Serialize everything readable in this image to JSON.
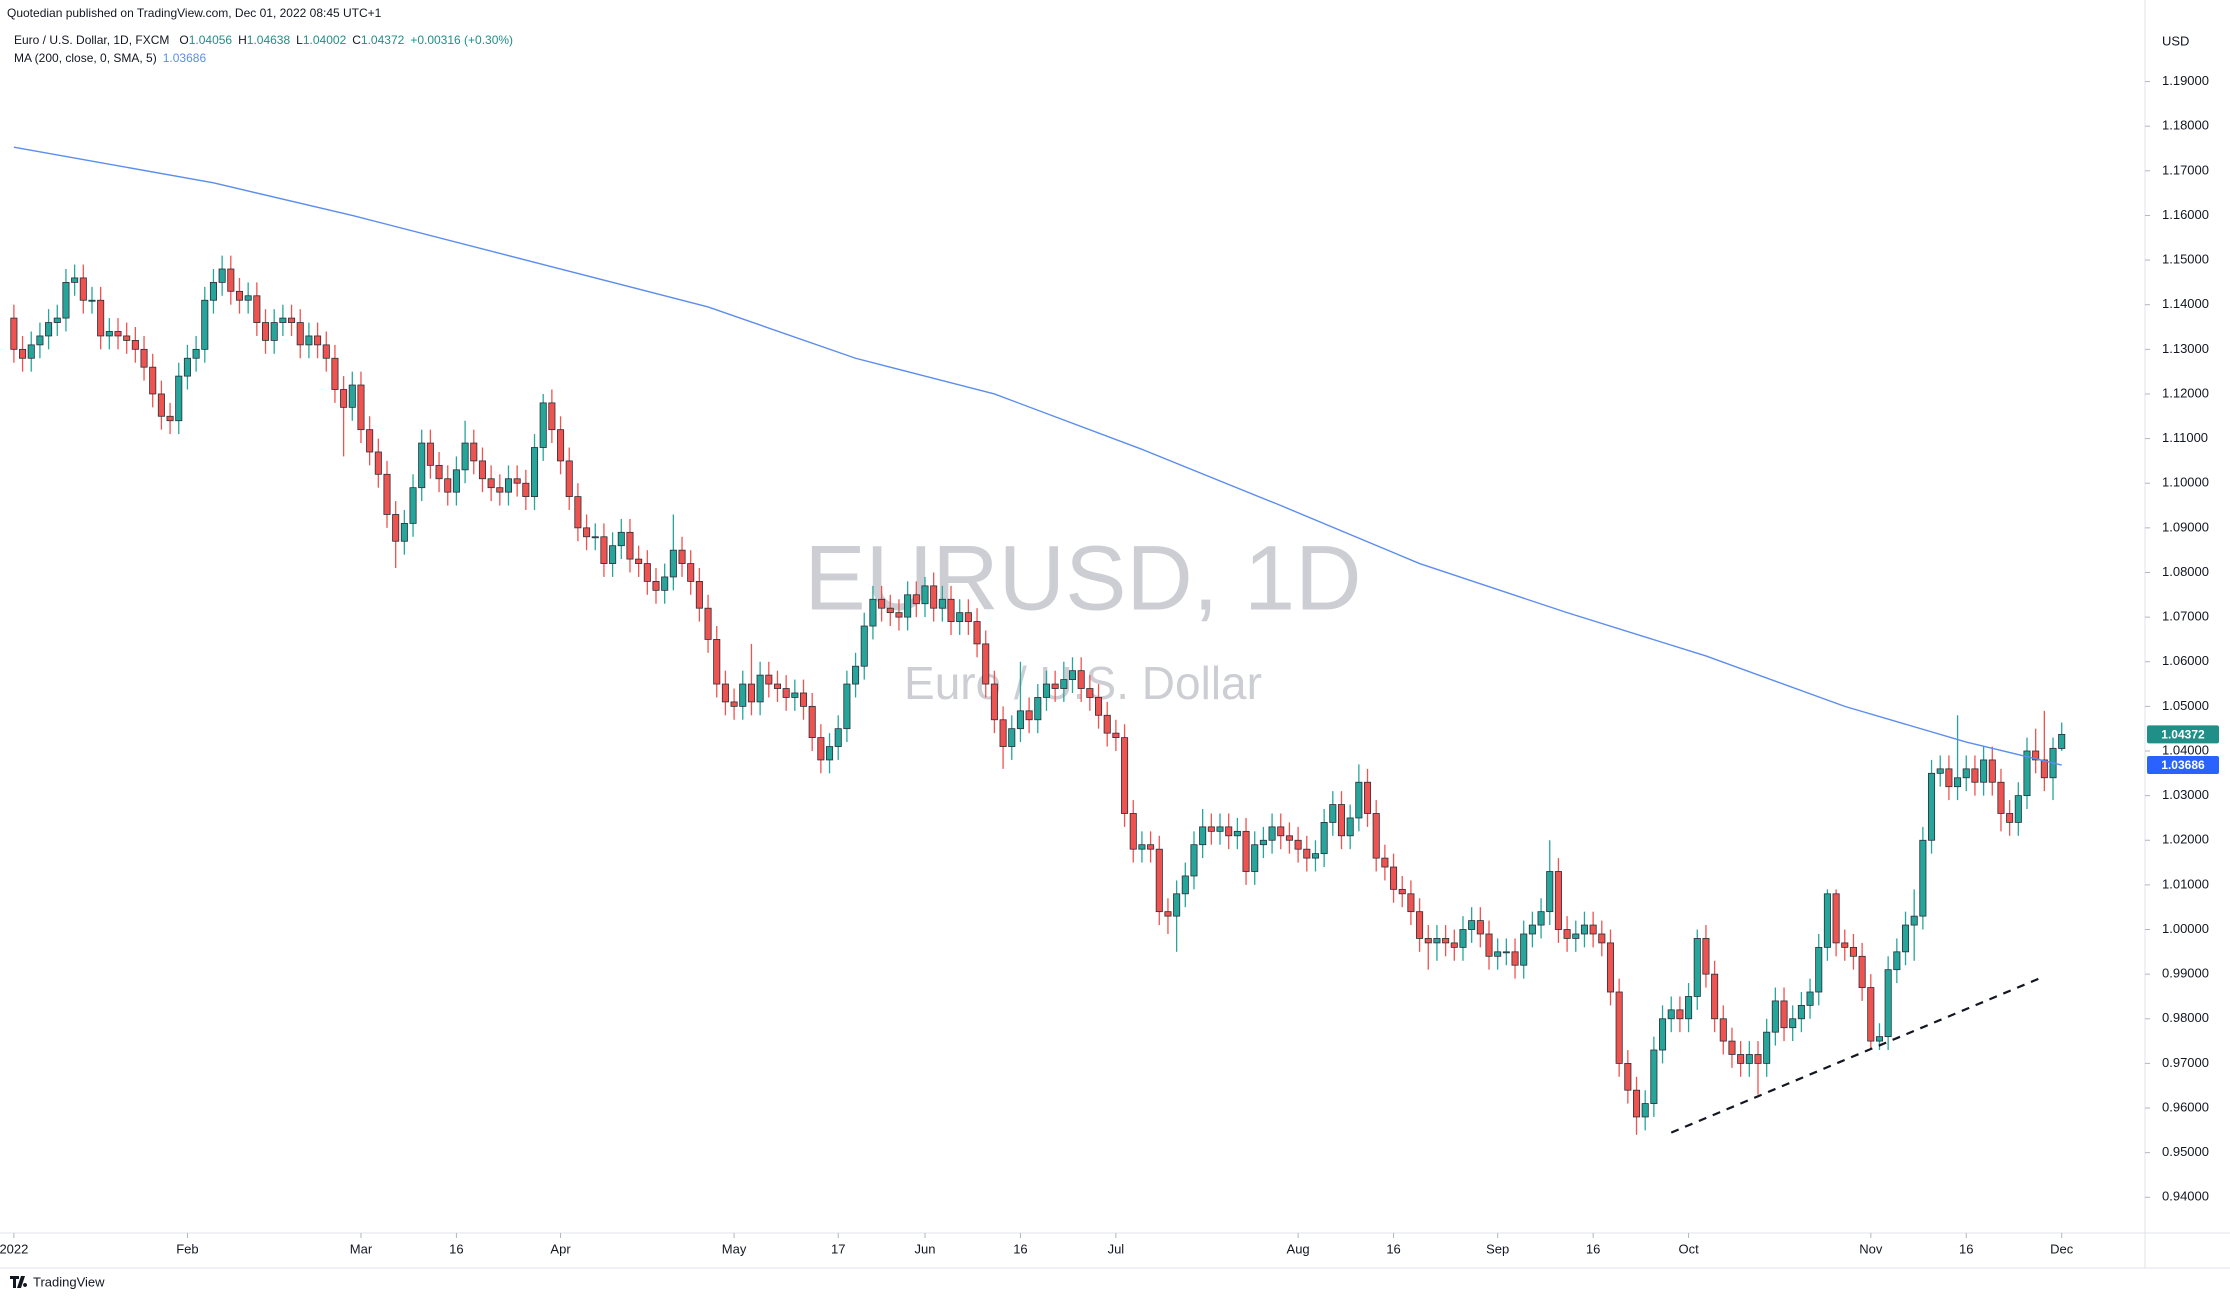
{
  "chart_data": {
    "type": "candlestick",
    "header": "Quotedian published on TradingView.com, Dec 01, 2022 08:45 UTC+1",
    "symbol": "Euro / U.S. Dollar, 1D, FXCM",
    "ohlc_prefixes": [
      "O",
      "H",
      "L",
      "C"
    ],
    "change": "+0.00316 (+0.30%)",
    "axis_label": "USD",
    "watermark": "EURUSD, 1D",
    "watermark_subtitle": "Euro / U.S. Dollar",
    "brand": "TradingView",
    "up_color": "#26a69a",
    "down_color": "#ef5350",
    "open": [
      1.137,
      1.13,
      1.128,
      1.131,
      1.133,
      1.136,
      1.137,
      1.145,
      1.146,
      1.141,
      1.141,
      1.133,
      1.134,
      1.133,
      1.132,
      1.13,
      1.126,
      1.12,
      1.115,
      1.114,
      1.124,
      1.128,
      1.13,
      1.141,
      1.145,
      1.148,
      1.143,
      1.141,
      1.142,
      1.136,
      1.132,
      1.136,
      1.137,
      1.136,
      1.131,
      1.133,
      1.131,
      1.128,
      1.121,
      1.117,
      1.122,
      1.112,
      1.107,
      1.102,
      1.093,
      1.087,
      1.091,
      1.099,
      1.109,
      1.104,
      1.101,
      1.098,
      1.103,
      1.109,
      1.105,
      1.101,
      1.099,
      1.098,
      1.101,
      1.1,
      1.097,
      1.108,
      1.118,
      1.112,
      1.105,
      1.097,
      1.09,
      1.088,
      1.088,
      1.082,
      1.086,
      1.089,
      1.083,
      1.082,
      1.078,
      1.076,
      1.079,
      1.085,
      1.082,
      1.078,
      1.072,
      1.065,
      1.055,
      1.051,
      1.05,
      1.055,
      1.051,
      1.057,
      1.055,
      1.054,
      1.052,
      1.053,
      1.05,
      1.043,
      1.038,
      1.041,
      1.045,
      1.055,
      1.059,
      1.068,
      1.074,
      1.072,
      1.071,
      1.07,
      1.075,
      1.073,
      1.077,
      1.072,
      1.074,
      1.069,
      1.071,
      1.069,
      1.064,
      1.055,
      1.047,
      1.041,
      1.045,
      1.049,
      1.047,
      1.052,
      1.055,
      1.054,
      1.056,
      1.058,
      1.054,
      1.052,
      1.048,
      1.044,
      1.043,
      1.026,
      1.018,
      1.019,
      1.018,
      1.004,
      1.003,
      1.008,
      1.012,
      1.019,
      1.023,
      1.022,
      1.023,
      1.021,
      1.022,
      1.013,
      1.019,
      1.02,
      1.023,
      1.021,
      1.02,
      1.018,
      1.016,
      1.017,
      1.024,
      1.028,
      1.021,
      1.025,
      1.033,
      1.026,
      1.016,
      1.014,
      1.009,
      1.008,
      1.004,
      0.998,
      0.997,
      0.998,
      0.997,
      0.996,
      1.0,
      1.002,
      0.999,
      0.994,
      0.995,
      0.995,
      0.992,
      0.999,
      1.001,
      1.004,
      1.013,
      1.0,
      0.998,
      0.999,
      1.001,
      0.999,
      0.997,
      0.986,
      0.97,
      0.964,
      0.958,
      0.961,
      0.973,
      0.98,
      0.982,
      0.98,
      0.985,
      0.998,
      0.99,
      0.98,
      0.975,
      0.972,
      0.97,
      0.972,
      0.97,
      0.977,
      0.984,
      0.978,
      0.98,
      0.983,
      0.986,
      0.996,
      1.008,
      0.997,
      0.996,
      0.994,
      0.987,
      0.975,
      0.976,
      0.991,
      0.995,
      1.001,
      1.003,
      1.02,
      1.035,
      1.036,
      1.032,
      1.034,
      1.036,
      1.033,
      1.038,
      1.033,
      1.026,
      1.024,
      1.03,
      1.04,
      1.038,
      1.034,
      1.04056
    ],
    "high": [
      1.14,
      1.133,
      1.134,
      1.136,
      1.139,
      1.14,
      1.148,
      1.149,
      1.149,
      1.144,
      1.144,
      1.137,
      1.137,
      1.136,
      1.135,
      1.133,
      1.129,
      1.123,
      1.118,
      1.127,
      1.131,
      1.133,
      1.144,
      1.148,
      1.151,
      1.151,
      1.146,
      1.145,
      1.145,
      1.139,
      1.139,
      1.14,
      1.14,
      1.139,
      1.136,
      1.136,
      1.134,
      1.131,
      1.124,
      1.125,
      1.125,
      1.115,
      1.11,
      1.105,
      1.096,
      1.094,
      1.102,
      1.112,
      1.112,
      1.107,
      1.104,
      1.106,
      1.114,
      1.112,
      1.108,
      1.104,
      1.102,
      1.104,
      1.104,
      1.103,
      1.111,
      1.12,
      1.121,
      1.115,
      1.108,
      1.1,
      1.093,
      1.091,
      1.091,
      1.089,
      1.092,
      1.092,
      1.086,
      1.085,
      1.081,
      1.082,
      1.093,
      1.088,
      1.085,
      1.081,
      1.075,
      1.068,
      1.058,
      1.054,
      1.058,
      1.064,
      1.06,
      1.06,
      1.058,
      1.057,
      1.056,
      1.056,
      1.053,
      1.046,
      1.044,
      1.048,
      1.058,
      1.062,
      1.071,
      1.077,
      1.077,
      1.075,
      1.074,
      1.078,
      1.078,
      1.079,
      1.08,
      1.077,
      1.077,
      1.074,
      1.074,
      1.072,
      1.067,
      1.058,
      1.05,
      1.048,
      1.06,
      1.052,
      1.055,
      1.058,
      1.058,
      1.06,
      1.061,
      1.061,
      1.057,
      1.055,
      1.051,
      1.047,
      1.046,
      1.029,
      1.022,
      1.022,
      1.021,
      1.007,
      1.011,
      1.015,
      1.022,
      1.027,
      1.026,
      1.026,
      1.026,
      1.025,
      1.025,
      1.022,
      1.023,
      1.026,
      1.026,
      1.024,
      1.023,
      1.021,
      1.02,
      1.027,
      1.031,
      1.031,
      1.028,
      1.037,
      1.036,
      1.029,
      1.019,
      1.017,
      1.012,
      1.011,
      1.007,
      1.001,
      1.001,
      1.001,
      1.0,
      1.003,
      1.005,
      1.005,
      1.002,
      0.998,
      0.998,
      0.998,
      1.002,
      1.004,
      1.007,
      1.02,
      1.016,
      1.003,
      1.002,
      1.004,
      1.004,
      1.002,
      1.0,
      0.989,
      0.973,
      0.967,
      0.964,
      0.976,
      0.983,
      0.985,
      0.985,
      0.988,
      1.0,
      1.001,
      0.993,
      0.983,
      0.978,
      0.975,
      0.975,
      0.975,
      0.98,
      0.987,
      0.987,
      0.983,
      0.986,
      0.989,
      0.999,
      1.009,
      1.009,
      1.0,
      0.999,
      0.997,
      0.99,
      0.979,
      0.994,
      0.998,
      1.004,
      1.009,
      1.023,
      1.038,
      1.039,
      1.039,
      1.048,
      1.039,
      1.039,
      1.041,
      1.041,
      1.036,
      1.029,
      1.033,
      1.043,
      1.045,
      1.049,
      1.043,
      1.04638
    ],
    "low": [
      1.127,
      1.125,
      1.125,
      1.128,
      1.13,
      1.133,
      1.134,
      1.142,
      1.138,
      1.138,
      1.13,
      1.13,
      1.13,
      1.129,
      1.127,
      1.123,
      1.117,
      1.112,
      1.111,
      1.111,
      1.121,
      1.125,
      1.127,
      1.138,
      1.142,
      1.14,
      1.138,
      1.138,
      1.133,
      1.129,
      1.129,
      1.133,
      1.133,
      1.128,
      1.128,
      1.128,
      1.125,
      1.118,
      1.106,
      1.114,
      1.109,
      1.104,
      1.099,
      1.09,
      1.081,
      1.084,
      1.088,
      1.096,
      1.101,
      1.098,
      1.095,
      1.095,
      1.1,
      1.102,
      1.098,
      1.096,
      1.095,
      1.095,
      1.097,
      1.094,
      1.094,
      1.105,
      1.109,
      1.102,
      1.094,
      1.087,
      1.085,
      1.085,
      1.079,
      1.079,
      1.083,
      1.08,
      1.079,
      1.075,
      1.073,
      1.073,
      1.076,
      1.079,
      1.075,
      1.069,
      1.062,
      1.052,
      1.048,
      1.047,
      1.047,
      1.048,
      1.048,
      1.052,
      1.051,
      1.049,
      1.049,
      1.047,
      1.04,
      1.035,
      1.035,
      1.038,
      1.042,
      1.052,
      1.056,
      1.065,
      1.069,
      1.068,
      1.067,
      1.067,
      1.07,
      1.07,
      1.069,
      1.069,
      1.066,
      1.066,
      1.066,
      1.061,
      1.052,
      1.044,
      1.036,
      1.038,
      1.042,
      1.044,
      1.044,
      1.049,
      1.051,
      1.051,
      1.053,
      1.051,
      1.049,
      1.045,
      1.041,
      1.04,
      1.023,
      1.015,
      1.015,
      1.015,
      1.001,
      0.999,
      0.995,
      1.005,
      1.009,
      1.016,
      1.019,
      1.019,
      1.018,
      1.018,
      1.01,
      1.01,
      1.016,
      1.017,
      1.018,
      1.017,
      1.015,
      1.013,
      1.013,
      1.014,
      1.021,
      1.018,
      1.018,
      1.022,
      1.023,
      1.013,
      1.011,
      1.006,
      1.005,
      1.001,
      0.995,
      0.991,
      0.993,
      0.994,
      0.993,
      0.993,
      0.997,
      0.996,
      0.991,
      0.991,
      0.992,
      0.989,
      0.989,
      0.996,
      0.998,
      1.001,
      0.997,
      0.995,
      0.995,
      0.996,
      0.996,
      0.994,
      0.983,
      0.967,
      0.961,
      0.954,
      0.955,
      0.958,
      0.97,
      0.977,
      0.977,
      0.977,
      0.982,
      0.987,
      0.977,
      0.972,
      0.969,
      0.967,
      0.967,
      0.963,
      0.967,
      0.974,
      0.975,
      0.975,
      0.977,
      0.98,
      0.983,
      0.993,
      0.994,
      0.993,
      0.991,
      0.984,
      0.973,
      0.973,
      0.973,
      0.988,
      0.992,
      0.993,
      1.0,
      1.017,
      1.032,
      1.029,
      1.029,
      1.031,
      1.03,
      1.03,
      1.03,
      1.022,
      1.021,
      1.021,
      1.027,
      1.035,
      1.031,
      1.029,
      1.04002
    ],
    "close": [
      1.13,
      1.128,
      1.131,
      1.133,
      1.136,
      1.137,
      1.145,
      1.146,
      1.141,
      1.141,
      1.133,
      1.134,
      1.133,
      1.132,
      1.13,
      1.126,
      1.12,
      1.115,
      1.114,
      1.124,
      1.128,
      1.13,
      1.141,
      1.145,
      1.148,
      1.143,
      1.141,
      1.142,
      1.136,
      1.132,
      1.136,
      1.137,
      1.136,
      1.131,
      1.133,
      1.131,
      1.128,
      1.121,
      1.117,
      1.122,
      1.112,
      1.107,
      1.102,
      1.093,
      1.087,
      1.091,
      1.099,
      1.109,
      1.104,
      1.101,
      1.098,
      1.103,
      1.109,
      1.105,
      1.101,
      1.099,
      1.098,
      1.101,
      1.1,
      1.097,
      1.108,
      1.118,
      1.112,
      1.105,
      1.097,
      1.09,
      1.088,
      1.088,
      1.082,
      1.086,
      1.089,
      1.083,
      1.082,
      1.078,
      1.076,
      1.079,
      1.085,
      1.082,
      1.078,
      1.072,
      1.065,
      1.055,
      1.051,
      1.05,
      1.055,
      1.051,
      1.057,
      1.055,
      1.054,
      1.052,
      1.053,
      1.05,
      1.043,
      1.038,
      1.041,
      1.045,
      1.055,
      1.059,
      1.068,
      1.074,
      1.072,
      1.071,
      1.07,
      1.075,
      1.073,
      1.077,
      1.072,
      1.074,
      1.069,
      1.071,
      1.069,
      1.064,
      1.055,
      1.047,
      1.041,
      1.045,
      1.049,
      1.047,
      1.052,
      1.055,
      1.054,
      1.056,
      1.058,
      1.054,
      1.052,
      1.048,
      1.044,
      1.043,
      1.026,
      1.018,
      1.019,
      1.018,
      1.004,
      1.003,
      1.008,
      1.012,
      1.019,
      1.023,
      1.022,
      1.023,
      1.021,
      1.022,
      1.013,
      1.019,
      1.02,
      1.023,
      1.021,
      1.02,
      1.018,
      1.016,
      1.017,
      1.024,
      1.028,
      1.021,
      1.025,
      1.033,
      1.026,
      1.016,
      1.014,
      1.009,
      1.008,
      1.004,
      0.998,
      0.997,
      0.998,
      0.997,
      0.996,
      1.0,
      1.002,
      0.999,
      0.994,
      0.995,
      0.995,
      0.992,
      0.999,
      1.001,
      1.004,
      1.013,
      1.0,
      0.998,
      0.999,
      1.001,
      0.999,
      0.997,
      0.986,
      0.97,
      0.964,
      0.958,
      0.961,
      0.973,
      0.98,
      0.982,
      0.98,
      0.985,
      0.998,
      0.99,
      0.98,
      0.975,
      0.972,
      0.97,
      0.972,
      0.97,
      0.977,
      0.984,
      0.978,
      0.98,
      0.983,
      0.986,
      0.996,
      1.008,
      0.997,
      0.996,
      0.994,
      0.987,
      0.975,
      0.976,
      0.991,
      0.995,
      1.001,
      1.003,
      1.02,
      1.035,
      1.036,
      1.032,
      1.034,
      1.036,
      1.033,
      1.038,
      1.033,
      1.026,
      1.024,
      1.03,
      1.04,
      1.038,
      1.034,
      1.0406,
      1.04372
    ],
    "ma": {
      "name": "MA (200, close, 0, SMA, 5)",
      "color": "#5b8def",
      "x": [
        0,
        23,
        39,
        61,
        80,
        97,
        113,
        130,
        146,
        162,
        179,
        195,
        211,
        225,
        236
      ],
      "values": [
        1.1753,
        1.1673,
        1.16,
        1.149,
        1.1395,
        1.128,
        1.12,
        1.1076,
        1.095,
        1.082,
        1.071,
        1.0613,
        1.05,
        1.042,
        1.03686
      ]
    },
    "trendline": {
      "x": [
        191,
        234
      ],
      "values": [
        0.9545,
        0.9895
      ]
    },
    "xlim": [
      -1.6,
      245.6
    ],
    "ylim": [
      0.932,
      1.202
    ],
    "xticks": [
      {
        "value": 0,
        "label": "2022"
      },
      {
        "value": 20,
        "label": "Feb"
      },
      {
        "value": 40,
        "label": "Mar"
      },
      {
        "value": 51,
        "label": "16"
      },
      {
        "value": 63,
        "label": "Apr"
      },
      {
        "value": 83,
        "label": "May"
      },
      {
        "value": 95,
        "label": "17"
      },
      {
        "value": 105,
        "label": "Jun"
      },
      {
        "value": 116,
        "label": "16"
      },
      {
        "value": 127,
        "label": "Jul"
      },
      {
        "value": 148,
        "label": "Aug"
      },
      {
        "value": 159,
        "label": "16"
      },
      {
        "value": 171,
        "label": "Sep"
      },
      {
        "value": 182,
        "label": "16"
      },
      {
        "value": 193,
        "label": "Oct"
      },
      {
        "value": 214,
        "label": "Nov"
      },
      {
        "value": 225,
        "label": "16"
      },
      {
        "value": 236,
        "label": "Dec"
      }
    ],
    "yticks": [
      {
        "value": 0.94,
        "label": "0.94000"
      },
      {
        "value": 0.95,
        "label": "0.95000"
      },
      {
        "value": 0.96,
        "label": "0.96000"
      },
      {
        "value": 0.97,
        "label": "0.97000"
      },
      {
        "value": 0.98,
        "label": "0.98000"
      },
      {
        "value": 0.99,
        "label": "0.99000"
      },
      {
        "value": 1.0,
        "label": "1.00000"
      },
      {
        "value": 1.01,
        "label": "1.01000"
      },
      {
        "value": 1.02,
        "label": "1.02000"
      },
      {
        "value": 1.03,
        "label": "1.03000"
      },
      {
        "value": 1.04,
        "label": "1.04000"
      },
      {
        "value": 1.05,
        "label": "1.05000"
      },
      {
        "value": 1.06,
        "label": "1.06000"
      },
      {
        "value": 1.07,
        "label": "1.07000"
      },
      {
        "value": 1.08,
        "label": "1.08000"
      },
      {
        "value": 1.09,
        "label": "1.09000"
      },
      {
        "value": 1.1,
        "label": "1.10000"
      },
      {
        "value": 1.11,
        "label": "1.11000"
      },
      {
        "value": 1.12,
        "label": "1.12000"
      },
      {
        "value": 1.13,
        "label": "1.13000"
      },
      {
        "value": 1.14,
        "label": "1.14000"
      },
      {
        "value": 1.15,
        "label": "1.15000"
      },
      {
        "value": 1.16,
        "label": "1.16000"
      },
      {
        "value": 1.17,
        "label": "1.17000"
      },
      {
        "value": 1.18,
        "label": "1.18000"
      },
      {
        "value": 1.19,
        "label": "1.19000"
      }
    ]
  }
}
